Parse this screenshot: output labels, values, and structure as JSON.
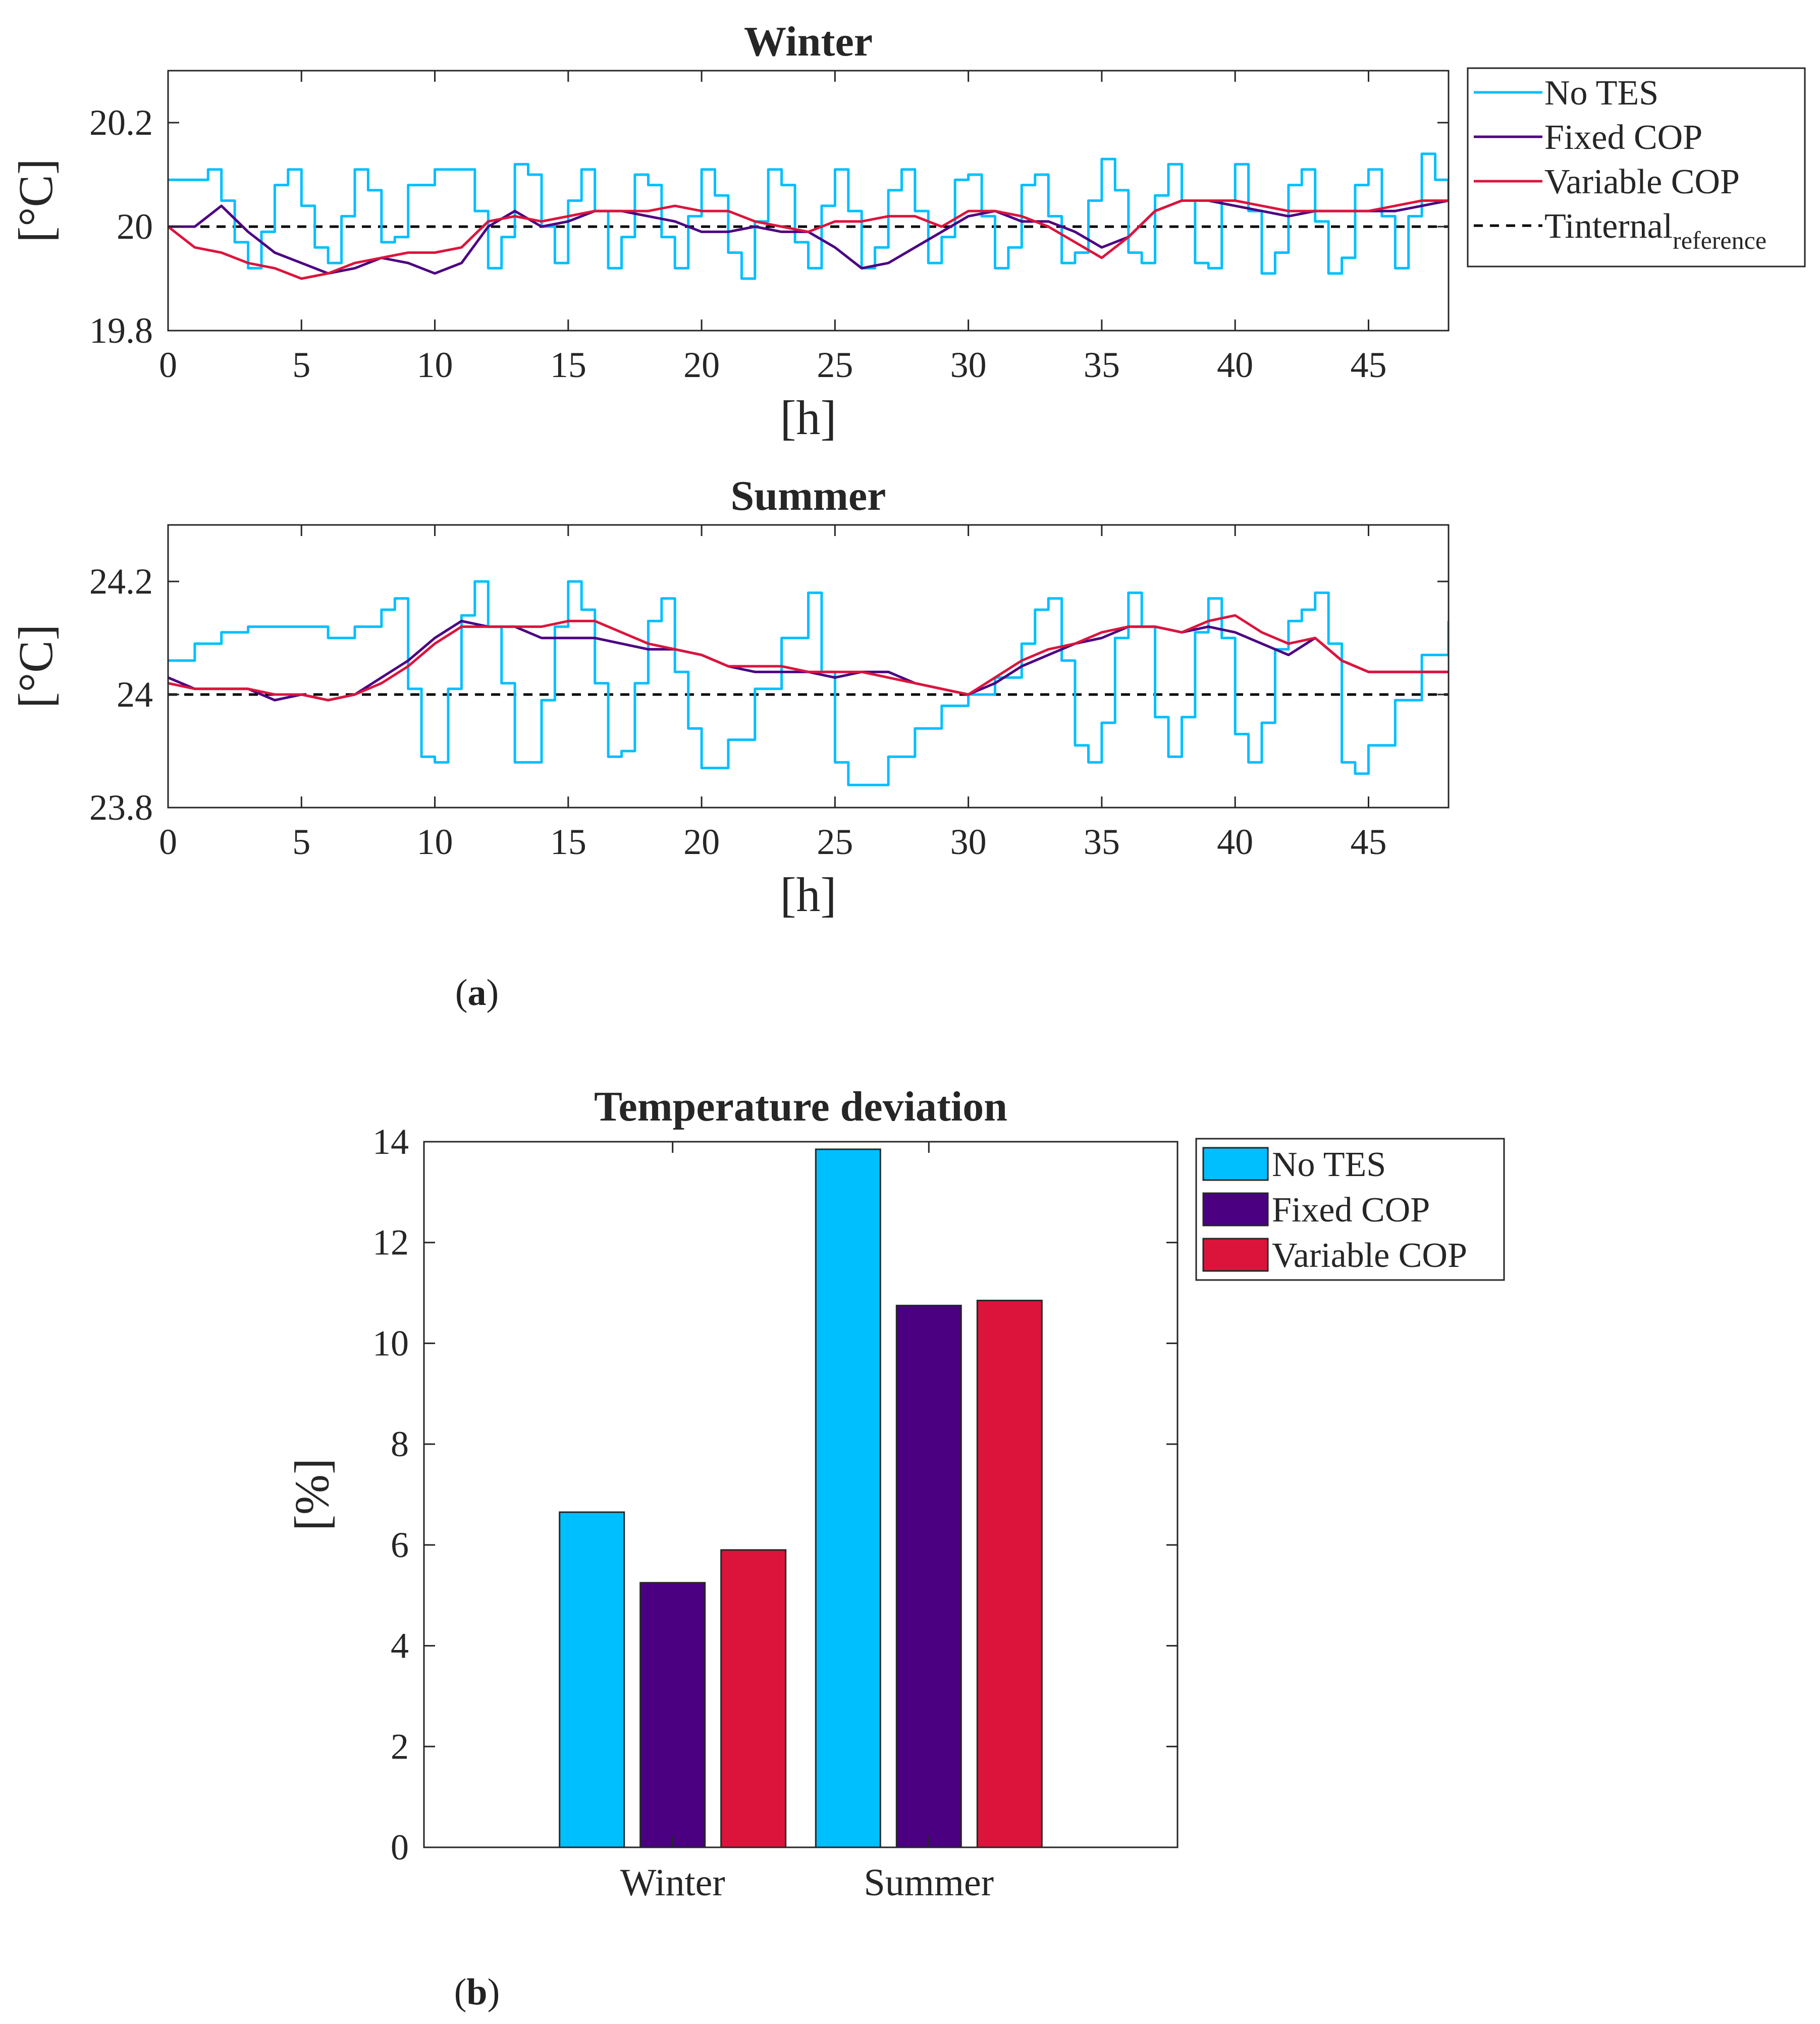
{
  "colors": {
    "no_tes": "#00BFFF",
    "fixed_cop": "#4B0082",
    "variable_cop": "#DC143C",
    "reference": "#000000",
    "axis": "#262626",
    "text": "#262626"
  },
  "captions": {
    "a": "a",
    "b": "b"
  },
  "chart_data": [
    {
      "type": "line",
      "title": "Winter",
      "xlabel": "[h]",
      "ylabel": "[°C]",
      "xlim": [
        0,
        48
      ],
      "ylim": [
        19.8,
        20.3
      ],
      "xticks": [
        0,
        5,
        10,
        15,
        20,
        25,
        30,
        35,
        40,
        45
      ],
      "yticks": [
        19.8,
        20,
        20.2
      ],
      "ytick_labels": [
        "19.8",
        "20",
        "20.2"
      ],
      "legend": {
        "placement": "outside-right",
        "entries": [
          {
            "label": "No TES",
            "sub": "",
            "style": "solid",
            "color_key": "no_tes"
          },
          {
            "label": "Fixed COP",
            "sub": "",
            "style": "solid",
            "color_key": "fixed_cop"
          },
          {
            "label": "Variable COP",
            "sub": "",
            "style": "solid",
            "color_key": "variable_cop"
          },
          {
            "label": "Tinternal",
            "sub": "reference",
            "style": "dashed",
            "color_key": "reference"
          }
        ]
      },
      "reference_value": 20,
      "series": [
        {
          "name": "No TES",
          "color_key": "no_tes",
          "step": true,
          "x": [
            0,
            1,
            1.5,
            2,
            2.5,
            3,
            3.5,
            4,
            4.5,
            5,
            5.5,
            6,
            6.5,
            7,
            7.5,
            8,
            8.5,
            9,
            10,
            11,
            11.5,
            12,
            12.5,
            13,
            13.5,
            14,
            14.5,
            15,
            15.5,
            16,
            16.5,
            17,
            17.5,
            18,
            18.5,
            19,
            19.5,
            20,
            20.5,
            21,
            21.5,
            22,
            22.5,
            23,
            23.5,
            24,
            24.5,
            25,
            25.5,
            26,
            26.5,
            27,
            27.5,
            28,
            28.5,
            29,
            29.5,
            30,
            30.5,
            31,
            31.5,
            32,
            32.5,
            33,
            33.5,
            34,
            34.5,
            35,
            35.5,
            36,
            36.5,
            37,
            37.5,
            38,
            38.5,
            39,
            39.5,
            40,
            40.5,
            41,
            41.5,
            42,
            42.5,
            43,
            43.5,
            44,
            44.5,
            45,
            45.5,
            46,
            46.5,
            47,
            47.5,
            48
          ],
          "y": [
            20.09,
            20.09,
            20.11,
            20.05,
            19.97,
            19.92,
            19.99,
            20.08,
            20.11,
            20.04,
            19.96,
            19.93,
            20.02,
            20.11,
            20.07,
            19.97,
            19.98,
            20.08,
            20.11,
            20.11,
            20.03,
            19.92,
            19.98,
            20.12,
            20.1,
            20,
            19.93,
            20.05,
            20.11,
            20.03,
            19.92,
            19.98,
            20.1,
            20.08,
            19.98,
            19.92,
            20.02,
            20.11,
            20.06,
            19.95,
            19.9,
            20.01,
            20.11,
            20.08,
            19.97,
            19.92,
            20.04,
            20.11,
            20.03,
            19.92,
            19.96,
            20.07,
            20.11,
            20.03,
            19.93,
            19.98,
            20.09,
            20.1,
            20.02,
            19.92,
            19.96,
            20.08,
            20.1,
            20.02,
            19.93,
            19.95,
            20.05,
            20.13,
            20.07,
            19.95,
            19.93,
            20.06,
            20.12,
            20.05,
            19.93,
            19.92,
            20.05,
            20.12,
            20.03,
            19.91,
            19.95,
            20.08,
            20.11,
            20.01,
            19.91,
            19.94,
            20.08,
            20.11,
            20.02,
            19.92,
            20.02,
            20.14,
            20.09,
            20.05
          ]
        },
        {
          "name": "Fixed COP",
          "color_key": "fixed_cop",
          "step": false,
          "x": [
            0,
            1,
            2,
            3,
            4,
            5,
            6,
            7,
            8,
            9,
            10,
            11,
            12,
            13,
            14,
            15,
            16,
            17,
            18,
            19,
            20,
            21,
            22,
            23,
            24,
            25,
            26,
            27,
            28,
            29,
            30,
            31,
            32,
            33,
            34,
            35,
            36,
            37,
            38,
            39,
            40,
            41,
            42,
            43,
            44,
            45,
            46,
            47,
            48
          ],
          "y": [
            20,
            20,
            20.04,
            19.99,
            19.95,
            19.93,
            19.91,
            19.92,
            19.94,
            19.93,
            19.91,
            19.93,
            20,
            20.03,
            20,
            20.01,
            20.03,
            20.03,
            20.02,
            20.01,
            19.99,
            19.99,
            20,
            19.99,
            19.99,
            19.96,
            19.92,
            19.93,
            19.96,
            19.99,
            20.02,
            20.03,
            20.01,
            20.01,
            19.99,
            19.96,
            19.98,
            20.03,
            20.05,
            20.05,
            20.04,
            20.03,
            20.02,
            20.03,
            20.03,
            20.03,
            20.03,
            20.04,
            20.05
          ]
        },
        {
          "name": "Variable COP",
          "color_key": "variable_cop",
          "step": false,
          "x": [
            0,
            1,
            2,
            3,
            4,
            5,
            6,
            7,
            8,
            9,
            10,
            11,
            12,
            13,
            14,
            15,
            16,
            17,
            18,
            19,
            20,
            21,
            22,
            23,
            24,
            25,
            26,
            27,
            28,
            29,
            30,
            31,
            32,
            33,
            34,
            35,
            36,
            37,
            38,
            39,
            40,
            41,
            42,
            43,
            44,
            45,
            46,
            47,
            48
          ],
          "y": [
            20,
            19.96,
            19.95,
            19.93,
            19.92,
            19.9,
            19.91,
            19.93,
            19.94,
            19.95,
            19.95,
            19.96,
            20.01,
            20.02,
            20.01,
            20.02,
            20.03,
            20.03,
            20.03,
            20.04,
            20.03,
            20.03,
            20.01,
            20,
            19.99,
            20.01,
            20.01,
            20.02,
            20.02,
            20,
            20.03,
            20.03,
            20.02,
            20,
            19.97,
            19.94,
            19.98,
            20.03,
            20.05,
            20.05,
            20.05,
            20.04,
            20.03,
            20.03,
            20.03,
            20.03,
            20.04,
            20.05,
            20.05
          ]
        }
      ]
    },
    {
      "type": "line",
      "title": "Summer",
      "xlabel": "[h]",
      "ylabel": "[°C]",
      "xlim": [
        0,
        48
      ],
      "ylim": [
        23.8,
        24.3
      ],
      "xticks": [
        0,
        5,
        10,
        15,
        20,
        25,
        30,
        35,
        40,
        45
      ],
      "yticks": [
        23.8,
        24,
        24.2
      ],
      "ytick_labels": [
        "23.8",
        "24",
        "24.2"
      ],
      "reference_value": 24,
      "series": [
        {
          "name": "No TES",
          "color_key": "no_tes",
          "step": true,
          "x": [
            0,
            1,
            2,
            3,
            4,
            5,
            6,
            7,
            8,
            8.5,
            9,
            9.5,
            10,
            10.5,
            11,
            11.5,
            12,
            12.5,
            13,
            13.5,
            14,
            14.5,
            15,
            15.5,
            16,
            16.5,
            17,
            17.5,
            18,
            18.5,
            19,
            19.5,
            20,
            20.5,
            21,
            22,
            23,
            24,
            24.5,
            25,
            25.5,
            26,
            27,
            28,
            29,
            30,
            31,
            32,
            32.5,
            33,
            33.5,
            34,
            34.5,
            35,
            35.5,
            36,
            36.5,
            37,
            37.5,
            38,
            38.5,
            39,
            39.5,
            40,
            40.5,
            41,
            41.5,
            42,
            42.5,
            43,
            43.5,
            44,
            44.5,
            45,
            46,
            47,
            48
          ],
          "y": [
            24.06,
            24.09,
            24.11,
            24.12,
            24.12,
            24.12,
            24.1,
            24.12,
            24.15,
            24.17,
            24.01,
            23.89,
            23.88,
            24.01,
            24.14,
            24.2,
            24.12,
            24.02,
            23.88,
            23.88,
            23.99,
            24.12,
            24.2,
            24.15,
            24.02,
            23.89,
            23.9,
            24.02,
            24.13,
            24.17,
            24.04,
            23.94,
            23.87,
            23.87,
            23.92,
            24.01,
            24.1,
            24.18,
            24.04,
            23.88,
            23.84,
            23.84,
            23.89,
            23.94,
            23.98,
            24,
            24.03,
            24.09,
            24.15,
            24.17,
            24.06,
            23.91,
            23.88,
            23.95,
            24.1,
            24.18,
            24.12,
            23.96,
            23.89,
            23.96,
            24.11,
            24.17,
            24.1,
            23.93,
            23.88,
            23.95,
            24.08,
            24.13,
            24.15,
            24.18,
            24.09,
            23.88,
            23.86,
            23.91,
            23.99,
            24.07,
            24.13
          ]
        },
        {
          "name": "Fixed COP",
          "color_key": "fixed_cop",
          "step": false,
          "x": [
            0,
            1,
            2,
            3,
            4,
            5,
            6,
            7,
            8,
            9,
            10,
            11,
            12,
            13,
            14,
            15,
            16,
            17,
            18,
            19,
            20,
            21,
            22,
            23,
            24,
            25,
            26,
            27,
            28,
            29,
            30,
            31,
            32,
            33,
            34,
            35,
            36,
            37,
            38,
            39,
            40,
            41,
            42,
            43,
            44,
            45,
            46,
            47,
            48
          ],
          "y": [
            24.03,
            24.01,
            24.01,
            24.01,
            23.99,
            24,
            23.99,
            24,
            24.03,
            24.06,
            24.1,
            24.13,
            24.12,
            24.12,
            24.1,
            24.1,
            24.1,
            24.09,
            24.08,
            24.08,
            24.07,
            24.05,
            24.04,
            24.04,
            24.04,
            24.03,
            24.04,
            24.04,
            24.02,
            24.01,
            24,
            24.02,
            24.05,
            24.07,
            24.09,
            24.1,
            24.12,
            24.12,
            24.11,
            24.12,
            24.11,
            24.09,
            24.07,
            24.1,
            24.06,
            24.04,
            24.04,
            24.04,
            24.04
          ]
        },
        {
          "name": "Variable COP",
          "color_key": "variable_cop",
          "step": false,
          "x": [
            0,
            1,
            2,
            3,
            4,
            5,
            6,
            7,
            8,
            9,
            10,
            11,
            12,
            13,
            14,
            15,
            16,
            17,
            18,
            19,
            20,
            21,
            22,
            23,
            24,
            25,
            26,
            27,
            28,
            29,
            30,
            31,
            32,
            33,
            34,
            35,
            36,
            37,
            38,
            39,
            40,
            41,
            42,
            43,
            44,
            45,
            46,
            47,
            48
          ],
          "y": [
            24.02,
            24.01,
            24.01,
            24.01,
            24,
            24,
            23.99,
            24,
            24.02,
            24.05,
            24.09,
            24.12,
            24.12,
            24.12,
            24.12,
            24.13,
            24.13,
            24.11,
            24.09,
            24.08,
            24.07,
            24.05,
            24.05,
            24.05,
            24.04,
            24.04,
            24.04,
            24.03,
            24.02,
            24.01,
            24,
            24.03,
            24.06,
            24.08,
            24.09,
            24.11,
            24.12,
            24.12,
            24.11,
            24.13,
            24.14,
            24.11,
            24.09,
            24.1,
            24.06,
            24.04,
            24.04,
            24.04,
            24.04
          ]
        }
      ]
    },
    {
      "type": "bar",
      "title": "Temperature deviation",
      "xlabel": "",
      "ylabel": "[%]",
      "ylim": [
        0,
        14
      ],
      "yticks": [
        0,
        2,
        4,
        6,
        8,
        10,
        12,
        14
      ],
      "categories": [
        "Winter",
        "Summer"
      ],
      "legend": {
        "placement": "outside-right",
        "entries": [
          {
            "label": "No TES",
            "color_key": "no_tes"
          },
          {
            "label": "Fixed COP",
            "color_key": "fixed_cop"
          },
          {
            "label": "Variable COP",
            "color_key": "variable_cop"
          }
        ]
      },
      "series": [
        {
          "name": "No TES",
          "color_key": "no_tes",
          "values": [
            6.65,
            13.85
          ]
        },
        {
          "name": "Fixed COP",
          "color_key": "fixed_cop",
          "values": [
            5.25,
            10.75
          ]
        },
        {
          "name": "Variable COP",
          "color_key": "variable_cop",
          "values": [
            5.9,
            10.85
          ]
        }
      ]
    }
  ]
}
